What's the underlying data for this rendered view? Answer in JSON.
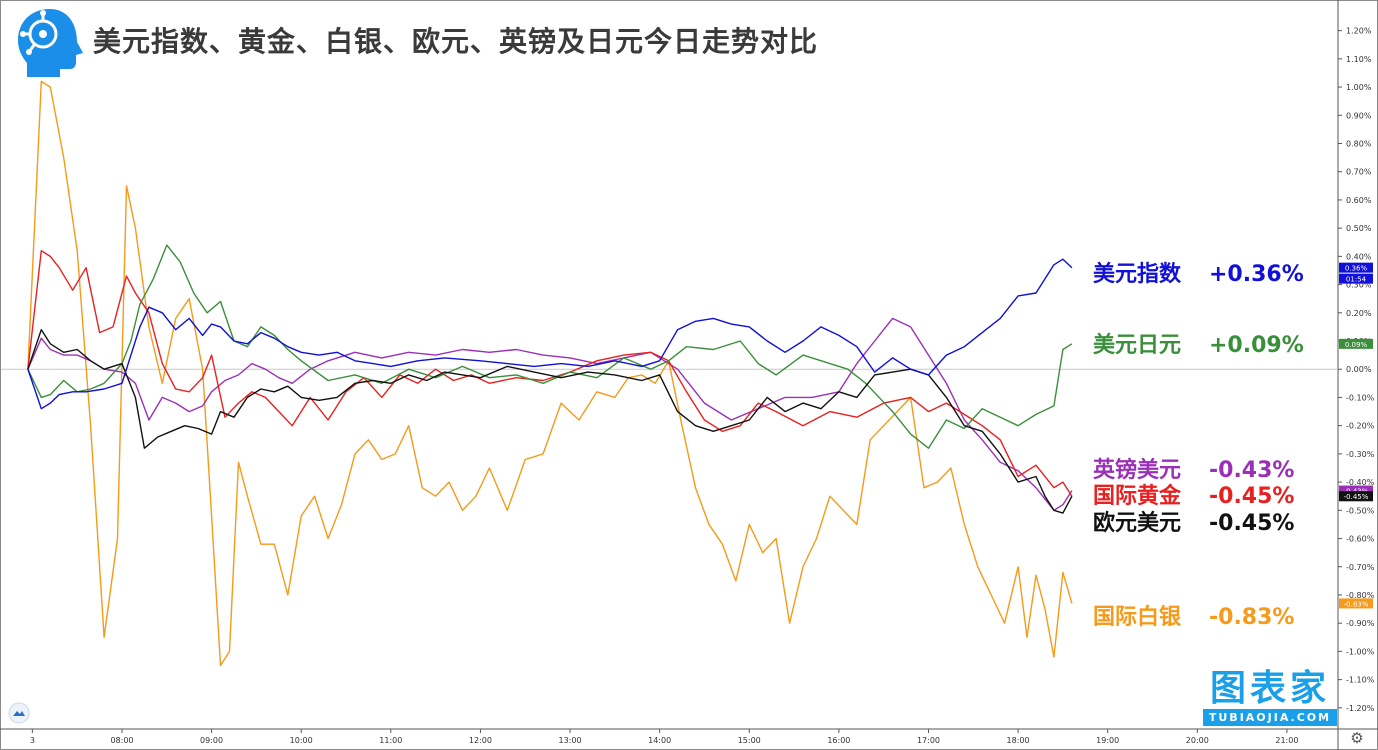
{
  "title": "美元指数、黄金、白银、欧元、英镑及日元今日走势对比",
  "watermark": {
    "cn": "图表家",
    "en": "TUBIAOJIA.COM"
  },
  "price_label_time": "01:54",
  "colors": {
    "usd_index": "#1010d8",
    "usd_jpy": "#3a8f3a",
    "gbp_usd": "#9b30b8",
    "gold": "#e82020",
    "eur_usd": "#111111",
    "silver": "#f59a1a"
  },
  "legend": [
    {
      "name": "美元指数",
      "value": "+0.36%",
      "color": "#1010d8"
    },
    {
      "name": "美元日元",
      "value": "+0.09%",
      "color": "#3a8f3a"
    },
    {
      "name": "英镑美元",
      "value": "-0.43%",
      "color": "#9b30b8"
    },
    {
      "name": "国际黄金",
      "value": "-0.45%",
      "color": "#e82020"
    },
    {
      "name": "欧元美元",
      "value": "-0.45%",
      "color": "#111111"
    },
    {
      "name": "国际白银",
      "value": "-0.83%",
      "color": "#f59a1a"
    }
  ],
  "chart_data": {
    "type": "line",
    "title": "美元指数、黄金、白银、欧元、英镑及日元今日走势对比",
    "xlabel": "",
    "ylabel": "",
    "x_unit": "hours (local time)",
    "x_ticks": [
      {
        "label": "3",
        "x": 7.0
      },
      {
        "label": "08:00",
        "x": 8.0
      },
      {
        "label": "09:00",
        "x": 9.0
      },
      {
        "label": "10:00",
        "x": 10.0
      },
      {
        "label": "11:00",
        "x": 11.0
      },
      {
        "label": "12:00",
        "x": 12.0
      },
      {
        "label": "13:00",
        "x": 13.0
      },
      {
        "label": "14:00",
        "x": 14.0
      },
      {
        "label": "15:00",
        "x": 15.0
      },
      {
        "label": "16:00",
        "x": 16.0
      },
      {
        "label": "17:00",
        "x": 17.0
      },
      {
        "label": "18:00",
        "x": 18.0
      },
      {
        "label": "19:00",
        "x": 19.0
      },
      {
        "label": "20:00",
        "x": 20.0
      },
      {
        "label": "21:00",
        "x": 21.0
      }
    ],
    "y_ticks": [
      1.2,
      1.1,
      1.0,
      0.9,
      0.8,
      0.7,
      0.6,
      0.5,
      0.4,
      0.3,
      0.2,
      0.1,
      0.0,
      -0.1,
      -0.2,
      -0.3,
      -0.4,
      -0.5,
      -0.6,
      -0.7,
      -0.8,
      -0.9,
      -1.0,
      -1.1,
      -1.2
    ],
    "y_tick_format": "0.00%",
    "xlim": [
      6.65,
      21.57
    ],
    "ylim": [
      -1.275,
      1.305
    ],
    "grid": false,
    "zero_line": true,
    "series": [
      {
        "name": "美元指数",
        "key": "usd_index",
        "last_label": "0.36%",
        "x": [
          6.95,
          7.1,
          7.2,
          7.3,
          7.45,
          7.6,
          7.8,
          8.0,
          8.1,
          8.2,
          8.3,
          8.45,
          8.6,
          8.75,
          8.9,
          9.0,
          9.1,
          9.25,
          9.4,
          9.55,
          9.7,
          9.85,
          10.0,
          10.2,
          10.4,
          10.6,
          10.8,
          11.0,
          11.3,
          11.6,
          12.0,
          12.3,
          12.6,
          12.9,
          13.2,
          13.5,
          13.8,
          14.0,
          14.2,
          14.4,
          14.6,
          14.8,
          15.0,
          15.2,
          15.4,
          15.6,
          15.8,
          16.0,
          16.2,
          16.4,
          16.6,
          16.8,
          17.0,
          17.2,
          17.4,
          17.6,
          17.8,
          18.0,
          18.2,
          18.4,
          18.5,
          18.6
        ],
        "y": [
          0.0,
          -0.14,
          -0.12,
          -0.09,
          -0.08,
          -0.08,
          -0.07,
          -0.05,
          0.05,
          0.15,
          0.22,
          0.2,
          0.14,
          0.18,
          0.12,
          0.16,
          0.15,
          0.1,
          0.09,
          0.13,
          0.11,
          0.08,
          0.06,
          0.05,
          0.06,
          0.03,
          0.02,
          0.01,
          0.03,
          0.04,
          0.03,
          0.02,
          0.01,
          0.02,
          0.01,
          0.03,
          0.01,
          0.03,
          0.14,
          0.17,
          0.18,
          0.16,
          0.15,
          0.1,
          0.06,
          0.1,
          0.15,
          0.12,
          0.08,
          -0.01,
          0.04,
          0.0,
          -0.02,
          0.05,
          0.08,
          0.13,
          0.18,
          0.26,
          0.27,
          0.37,
          0.39,
          0.36
        ]
      },
      {
        "name": "美元日元",
        "key": "usd_jpy",
        "last_label": "0.09%",
        "x": [
          6.95,
          7.1,
          7.2,
          7.35,
          7.5,
          7.65,
          7.8,
          8.0,
          8.1,
          8.2,
          8.35,
          8.5,
          8.65,
          8.8,
          8.95,
          9.1,
          9.25,
          9.4,
          9.55,
          9.7,
          9.85,
          10.0,
          10.3,
          10.6,
          10.9,
          11.2,
          11.5,
          11.8,
          12.1,
          12.4,
          12.7,
          13.0,
          13.3,
          13.6,
          13.9,
          14.1,
          14.3,
          14.6,
          14.9,
          15.1,
          15.3,
          15.6,
          15.9,
          16.1,
          16.3,
          16.6,
          16.8,
          17.0,
          17.2,
          17.4,
          17.6,
          17.8,
          18.0,
          18.2,
          18.4,
          18.5,
          18.6
        ],
        "y": [
          0.0,
          -0.1,
          -0.09,
          -0.04,
          -0.08,
          -0.07,
          -0.05,
          0.02,
          0.1,
          0.23,
          0.32,
          0.44,
          0.38,
          0.27,
          0.2,
          0.24,
          0.1,
          0.08,
          0.15,
          0.12,
          0.07,
          0.03,
          -0.04,
          -0.02,
          -0.05,
          0.0,
          -0.03,
          0.01,
          -0.03,
          -0.02,
          -0.05,
          -0.01,
          -0.03,
          0.04,
          0.0,
          0.03,
          0.08,
          0.07,
          0.1,
          0.02,
          -0.02,
          0.05,
          0.02,
          0.0,
          -0.05,
          -0.15,
          -0.23,
          -0.28,
          -0.18,
          -0.21,
          -0.14,
          -0.17,
          -0.2,
          -0.16,
          -0.13,
          0.07,
          0.09
        ]
      },
      {
        "name": "英镑美元",
        "key": "gbp_usd",
        "last_label": "-0.43%",
        "x": [
          6.95,
          7.1,
          7.2,
          7.35,
          7.5,
          7.65,
          7.8,
          8.0,
          8.15,
          8.3,
          8.45,
          8.6,
          8.75,
          8.9,
          9.0,
          9.15,
          9.3,
          9.45,
          9.6,
          9.75,
          9.9,
          10.1,
          10.3,
          10.6,
          10.9,
          11.2,
          11.5,
          11.8,
          12.1,
          12.4,
          12.7,
          13.0,
          13.3,
          13.6,
          13.9,
          14.2,
          14.5,
          14.8,
          15.1,
          15.4,
          15.7,
          16.0,
          16.2,
          16.4,
          16.6,
          16.8,
          17.0,
          17.2,
          17.4,
          17.6,
          17.8,
          18.0,
          18.2,
          18.4,
          18.5,
          18.6
        ],
        "y": [
          0.0,
          0.11,
          0.07,
          0.05,
          0.05,
          0.03,
          0.0,
          -0.01,
          -0.05,
          -0.18,
          -0.1,
          -0.12,
          -0.15,
          -0.13,
          -0.08,
          -0.04,
          -0.02,
          0.02,
          0.0,
          -0.03,
          -0.05,
          0.0,
          0.03,
          0.06,
          0.04,
          0.06,
          0.05,
          0.07,
          0.06,
          0.07,
          0.05,
          0.04,
          0.02,
          0.04,
          0.06,
          0.0,
          -0.12,
          -0.18,
          -0.14,
          -0.1,
          -0.1,
          -0.08,
          0.02,
          0.1,
          0.18,
          0.15,
          0.05,
          -0.05,
          -0.18,
          -0.25,
          -0.33,
          -0.36,
          -0.42,
          -0.5,
          -0.48,
          -0.43
        ]
      },
      {
        "name": "国际黄金",
        "key": "gold",
        "last_label": "-0.45%",
        "x": [
          6.95,
          7.1,
          7.2,
          7.3,
          7.45,
          7.6,
          7.75,
          7.9,
          8.05,
          8.15,
          8.3,
          8.45,
          8.6,
          8.75,
          8.9,
          9.0,
          9.15,
          9.3,
          9.45,
          9.6,
          9.75,
          9.9,
          10.1,
          10.3,
          10.5,
          10.7,
          10.9,
          11.1,
          11.3,
          11.5,
          11.7,
          11.9,
          12.1,
          12.4,
          12.7,
          13.0,
          13.3,
          13.6,
          13.9,
          14.1,
          14.3,
          14.5,
          14.7,
          14.9,
          15.1,
          15.3,
          15.6,
          15.9,
          16.2,
          16.5,
          16.8,
          17.0,
          17.2,
          17.4,
          17.6,
          17.8,
          18.0,
          18.2,
          18.4,
          18.5,
          18.6
        ],
        "y": [
          0.0,
          0.42,
          0.4,
          0.36,
          0.28,
          0.36,
          0.13,
          0.15,
          0.33,
          0.27,
          0.2,
          0.02,
          -0.07,
          -0.08,
          -0.03,
          0.05,
          -0.17,
          -0.12,
          -0.08,
          -0.1,
          -0.15,
          -0.2,
          -0.1,
          -0.18,
          -0.08,
          -0.03,
          -0.1,
          -0.02,
          -0.05,
          0.0,
          -0.04,
          -0.02,
          -0.05,
          -0.03,
          -0.04,
          -0.01,
          0.03,
          0.05,
          0.06,
          0.03,
          -0.08,
          -0.18,
          -0.22,
          -0.2,
          -0.12,
          -0.15,
          -0.2,
          -0.15,
          -0.17,
          -0.12,
          -0.1,
          -0.15,
          -0.12,
          -0.16,
          -0.2,
          -0.25,
          -0.38,
          -0.34,
          -0.42,
          -0.4,
          -0.45
        ]
      },
      {
        "name": "欧元美元",
        "key": "eur_usd",
        "last_label": "-0.45%",
        "x": [
          6.95,
          7.1,
          7.2,
          7.35,
          7.5,
          7.65,
          7.8,
          8.0,
          8.15,
          8.25,
          8.4,
          8.55,
          8.7,
          8.85,
          9.0,
          9.1,
          9.25,
          9.4,
          9.55,
          9.7,
          9.85,
          10.0,
          10.2,
          10.4,
          10.6,
          10.8,
          11.0,
          11.2,
          11.4,
          11.6,
          11.8,
          12.0,
          12.3,
          12.6,
          12.9,
          13.2,
          13.5,
          13.8,
          14.0,
          14.2,
          14.4,
          14.6,
          14.8,
          15.0,
          15.2,
          15.4,
          15.6,
          15.8,
          16.0,
          16.2,
          16.4,
          16.6,
          16.8,
          17.0,
          17.2,
          17.4,
          17.6,
          17.8,
          18.0,
          18.2,
          18.3,
          18.4,
          18.5,
          18.6
        ],
        "y": [
          0.0,
          0.14,
          0.09,
          0.06,
          0.07,
          0.03,
          0.0,
          0.02,
          -0.1,
          -0.28,
          -0.24,
          -0.22,
          -0.2,
          -0.21,
          -0.23,
          -0.15,
          -0.17,
          -0.1,
          -0.07,
          -0.08,
          -0.06,
          -0.1,
          -0.11,
          -0.1,
          -0.05,
          -0.04,
          -0.05,
          -0.02,
          -0.04,
          -0.01,
          -0.02,
          -0.03,
          0.01,
          -0.01,
          -0.03,
          -0.01,
          -0.02,
          -0.04,
          -0.02,
          -0.15,
          -0.2,
          -0.22,
          -0.2,
          -0.18,
          -0.1,
          -0.15,
          -0.12,
          -0.14,
          -0.08,
          -0.1,
          -0.02,
          -0.01,
          0.0,
          -0.02,
          -0.1,
          -0.2,
          -0.22,
          -0.3,
          -0.4,
          -0.38,
          -0.45,
          -0.5,
          -0.51,
          -0.45
        ]
      },
      {
        "name": "国际白银",
        "key": "silver",
        "last_label": "-0.83%",
        "x": [
          6.95,
          7.1,
          7.2,
          7.35,
          7.5,
          7.65,
          7.8,
          7.95,
          8.05,
          8.15,
          8.3,
          8.45,
          8.6,
          8.75,
          8.9,
          9.0,
          9.1,
          9.2,
          9.3,
          9.4,
          9.55,
          9.7,
          9.85,
          10.0,
          10.15,
          10.3,
          10.45,
          10.6,
          10.75,
          10.9,
          11.05,
          11.2,
          11.35,
          11.5,
          11.65,
          11.8,
          11.95,
          12.1,
          12.3,
          12.5,
          12.7,
          12.9,
          13.1,
          13.3,
          13.5,
          13.65,
          13.8,
          13.95,
          14.1,
          14.25,
          14.4,
          14.55,
          14.7,
          14.85,
          15.0,
          15.15,
          15.3,
          15.45,
          15.6,
          15.75,
          15.9,
          16.05,
          16.2,
          16.35,
          16.5,
          16.65,
          16.8,
          16.95,
          17.1,
          17.25,
          17.4,
          17.55,
          17.7,
          17.85,
          18.0,
          18.1,
          18.2,
          18.3,
          18.4,
          18.5,
          18.6
        ],
        "y": [
          0.0,
          1.02,
          1.0,
          0.75,
          0.42,
          -0.2,
          -0.95,
          -0.6,
          0.65,
          0.5,
          0.15,
          -0.05,
          0.18,
          0.25,
          0.0,
          -0.52,
          -1.05,
          -1.0,
          -0.33,
          -0.45,
          -0.62,
          -0.62,
          -0.8,
          -0.52,
          -0.45,
          -0.6,
          -0.48,
          -0.3,
          -0.25,
          -0.32,
          -0.3,
          -0.2,
          -0.42,
          -0.45,
          -0.4,
          -0.5,
          -0.45,
          -0.35,
          -0.5,
          -0.32,
          -0.3,
          -0.12,
          -0.18,
          -0.08,
          -0.1,
          -0.03,
          -0.02,
          -0.05,
          0.03,
          -0.2,
          -0.42,
          -0.55,
          -0.62,
          -0.75,
          -0.55,
          -0.65,
          -0.6,
          -0.9,
          -0.7,
          -0.6,
          -0.45,
          -0.5,
          -0.55,
          -0.25,
          -0.2,
          -0.15,
          -0.1,
          -0.42,
          -0.4,
          -0.35,
          -0.55,
          -0.7,
          -0.8,
          -0.9,
          -0.7,
          -0.95,
          -0.73,
          -0.85,
          -1.02,
          -0.72,
          -0.83
        ]
      }
    ]
  }
}
